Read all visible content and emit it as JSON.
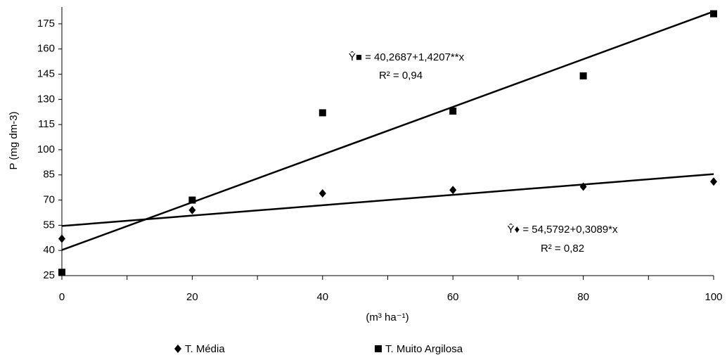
{
  "chart_data": {
    "type": "scatter",
    "x_label": "(m³ ha⁻¹)",
    "y_label": "P (mg dm-3)",
    "x": [
      0,
      20,
      40,
      60,
      80,
      100
    ],
    "series": [
      {
        "name": "T. Média",
        "color": "#000000",
        "marker": "diamond",
        "values": [
          47,
          64,
          74,
          76,
          78,
          81
        ],
        "trend": {
          "intercept": 54.5792,
          "slope": 0.3089
        },
        "equation": "Ŷ♦ = 54,5792+0,3089*x",
        "r2": "R² = 0,82"
      },
      {
        "name": "T. Muito Argilosa",
        "color": "#000000",
        "marker": "square",
        "values": [
          27,
          70,
          122,
          123,
          144,
          181
        ],
        "trend": {
          "intercept": 40.2687,
          "slope": 1.4207
        },
        "equation": "Ŷ■ = 40,2687+1,4207**x",
        "r2": "R² = 0,94"
      }
    ],
    "xlim": [
      0,
      100
    ],
    "xticks": [
      0,
      20,
      40,
      60,
      80,
      100
    ],
    "ylim": [
      25,
      185
    ],
    "yticks": [
      25,
      40,
      55,
      70,
      85,
      100,
      115,
      130,
      145,
      160,
      175
    ],
    "grid": false,
    "legend": "bottom"
  }
}
